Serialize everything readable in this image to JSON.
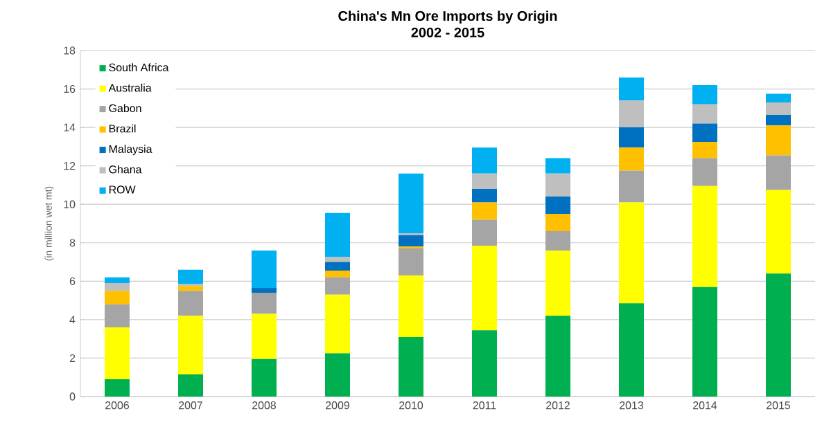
{
  "chart_data": {
    "type": "bar",
    "stacked": true,
    "title": "China's Mn Ore Imports by Origin",
    "subtitle": "2002 - 2015",
    "ylabel": "(in million wet mt)",
    "categories": [
      "2006",
      "2007",
      "2008",
      "2009",
      "2010",
      "2011",
      "2012",
      "2013",
      "2014",
      "2015"
    ],
    "series": [
      {
        "name": "South Africa",
        "color": "#00b050",
        "values": [
          0.9,
          1.15,
          1.95,
          2.25,
          3.1,
          3.45,
          4.2,
          4.85,
          5.7,
          6.4
        ]
      },
      {
        "name": "Australia",
        "color": "#ffff00",
        "values": [
          2.7,
          3.05,
          2.35,
          3.05,
          3.2,
          4.4,
          3.4,
          5.25,
          5.25,
          4.35
        ]
      },
      {
        "name": "Gabon",
        "color": "#a5a5a5",
        "values": [
          1.2,
          1.3,
          1.1,
          0.9,
          1.4,
          1.35,
          1.0,
          1.65,
          1.45,
          1.8
        ]
      },
      {
        "name": "Brazil",
        "color": "#ffc000",
        "values": [
          0.7,
          0.25,
          0,
          0.35,
          0.1,
          0.9,
          0.9,
          1.2,
          0.85,
          1.55
        ]
      },
      {
        "name": "Malaysia",
        "color": "#0070c0",
        "values": [
          0,
          0,
          0.25,
          0.45,
          0.6,
          0.7,
          0.9,
          1.05,
          0.95,
          0.55
        ]
      },
      {
        "name": "Ghana",
        "color": "#bfbfbf",
        "values": [
          0.4,
          0.1,
          0,
          0.25,
          0.1,
          0.8,
          1.2,
          1.4,
          1.0,
          0.65
        ]
      },
      {
        "name": "ROW",
        "color": "#00b0f0",
        "values": [
          0.3,
          0.75,
          1.95,
          2.3,
          3.1,
          1.35,
          0.8,
          1.2,
          1.0,
          0.45
        ]
      }
    ],
    "ylim": [
      0,
      18
    ],
    "yticks": [
      0,
      2,
      4,
      6,
      8,
      10,
      12,
      14,
      16,
      18
    ],
    "grid": "y",
    "legend": "top left"
  }
}
